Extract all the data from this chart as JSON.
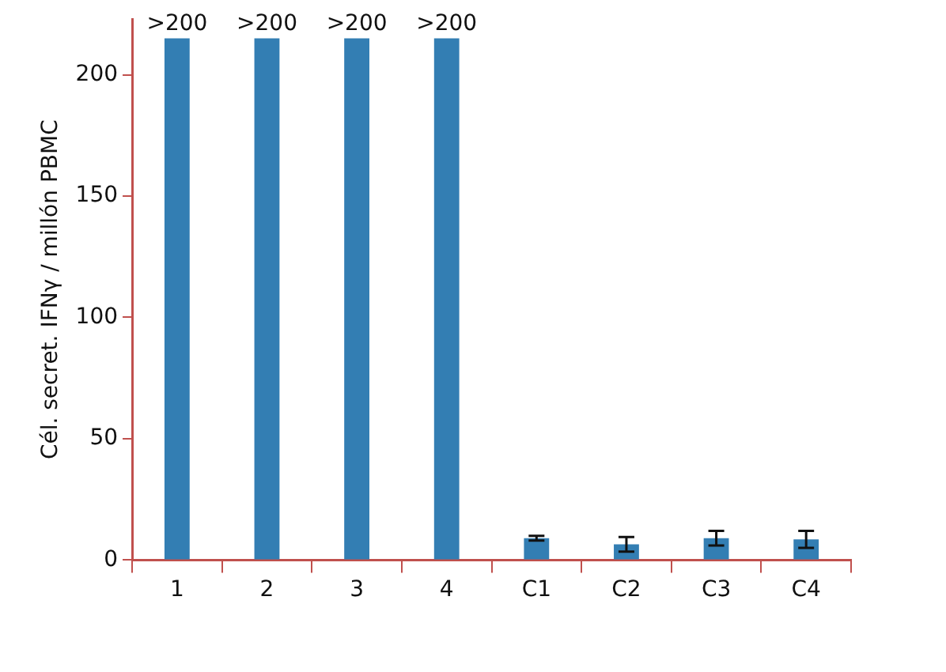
{
  "chart_data": {
    "type": "bar",
    "ylabel": "Cél. secret. IFNγ / millón PBMC",
    "categories": [
      "1",
      "2",
      "3",
      "4",
      "C1",
      "C2",
      "C3",
      "C4"
    ],
    "values": [
      215,
      215,
      215,
      215,
      9,
      6.5,
      9,
      8.5
    ],
    "color": "#337eb3",
    "errors": [
      null,
      null,
      null,
      null,
      1,
      3,
      3,
      3.5
    ],
    "value_labels": [
      ">200",
      ">200",
      ">200",
      ">200",
      null,
      null,
      null,
      null
    ],
    "ylim": [
      0,
      223
    ],
    "yticks": [
      0,
      50,
      100,
      150,
      200
    ],
    "grid": false,
    "legend": false
  }
}
